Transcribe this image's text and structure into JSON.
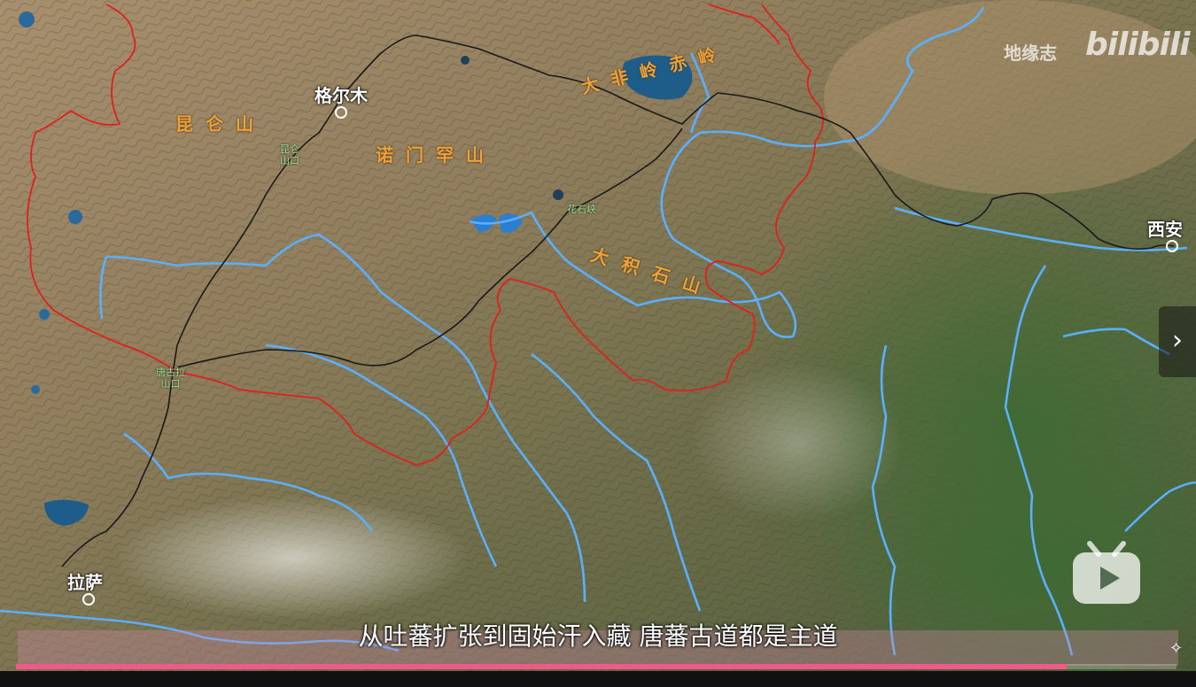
{
  "watermark": {
    "channel": "地缘志",
    "platform": "bilibili"
  },
  "cities": [
    {
      "id": "golmud",
      "name": "格尔木"
    },
    {
      "id": "xian",
      "name": "西安"
    },
    {
      "id": "lhasa",
      "name": "拉萨"
    }
  ],
  "mountains": [
    {
      "id": "kunlun",
      "name": "昆仑山"
    },
    {
      "id": "burhan-budai",
      "name": "诺门罕山"
    },
    {
      "id": "datong-riyue",
      "name": "大非岭赤岭"
    },
    {
      "id": "amne-machin",
      "name": "大积石山"
    }
  ],
  "passes": [
    {
      "id": "kunlun-pass",
      "line1": "昆仑",
      "line2": "山口"
    },
    {
      "id": "huashixia",
      "line1": "花石峡",
      "line2": ""
    },
    {
      "id": "tanggula-pass",
      "line1": "唐古拉",
      "line2": "山口"
    }
  ],
  "subtitle": "从吐蕃扩张到固始汗入藏 唐蕃古道都是主道",
  "player": {
    "progress_fraction": 0.905
  },
  "colors": {
    "route": "#1a1a1a",
    "river": "#5ab0ff",
    "border": "#e0201c",
    "progress": "#f05a8a",
    "mountain_label": "#f0a23a",
    "pass_label": "#9fe39a"
  },
  "icons": [
    "chevron-right-icon",
    "bilibili-tv-icon",
    "pin-icon"
  ]
}
